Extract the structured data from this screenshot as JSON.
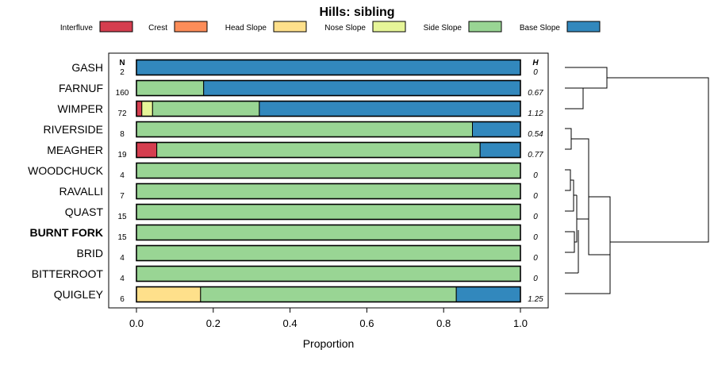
{
  "chart_data": {
    "type": "bar",
    "orientation": "horizontal",
    "stacked": true,
    "title": "Hills: sibling",
    "xlabel": "Proportion",
    "ylabel": "",
    "xlim": [
      0,
      1
    ],
    "x_ticks": [
      "0.0",
      "0.2",
      "0.4",
      "0.6",
      "0.8",
      "1.0"
    ],
    "x_tick_values": [
      0,
      0.2,
      0.4,
      0.6,
      0.8,
      1.0
    ],
    "legend_position": "top",
    "n_header": "N",
    "h_header": "H",
    "highlighted_category": "BURNT FORK",
    "segments": [
      {
        "name": "Interfluve",
        "color": "#D53E4F"
      },
      {
        "name": "Crest",
        "color": "#FC8D59"
      },
      {
        "name": "Head Slope",
        "color": "#FEE08B"
      },
      {
        "name": "Nose Slope",
        "color": "#E6F598"
      },
      {
        "name": "Side Slope",
        "color": "#99D594"
      },
      {
        "name": "Base Slope",
        "color": "#3288BD"
      }
    ],
    "categories": [
      "GASH",
      "FARNUF",
      "WIMPER",
      "RIVERSIDE",
      "MEAGHER",
      "WOODCHUCK",
      "RAVALLI",
      "QUAST",
      "BURNT FORK",
      "BRID",
      "BITTERROOT",
      "QUIGLEY"
    ],
    "n": [
      "2",
      "160",
      "72",
      "8",
      "19",
      "4",
      "7",
      "15",
      "15",
      "4",
      "4",
      "6"
    ],
    "h": [
      "0",
      "0.67",
      "1.12",
      "0.54",
      "0.77",
      "0",
      "0",
      "0",
      "0",
      "0",
      "0",
      "1.25"
    ],
    "values": [
      [
        0,
        0,
        0,
        0,
        0,
        1.0
      ],
      [
        0,
        0,
        0,
        0,
        0.175,
        0.825
      ],
      [
        0.014,
        0,
        0,
        0.028,
        0.278,
        0.68
      ],
      [
        0,
        0,
        0,
        0,
        0.875,
        0.125
      ],
      [
        0.053,
        0,
        0,
        0,
        0.842,
        0.105
      ],
      [
        0,
        0,
        0,
        0,
        1.0,
        0
      ],
      [
        0,
        0,
        0,
        0,
        1.0,
        0
      ],
      [
        0,
        0,
        0,
        0,
        1.0,
        0
      ],
      [
        0,
        0,
        0,
        0,
        1.0,
        0
      ],
      [
        0,
        0,
        0,
        0,
        1.0,
        0
      ],
      [
        0,
        0,
        0,
        0,
        1.0,
        0
      ],
      [
        0,
        0,
        0.167,
        0,
        0.666,
        0.167
      ]
    ],
    "dendrogram": "hierarchical clustering of categories (tree shown at right)"
  }
}
